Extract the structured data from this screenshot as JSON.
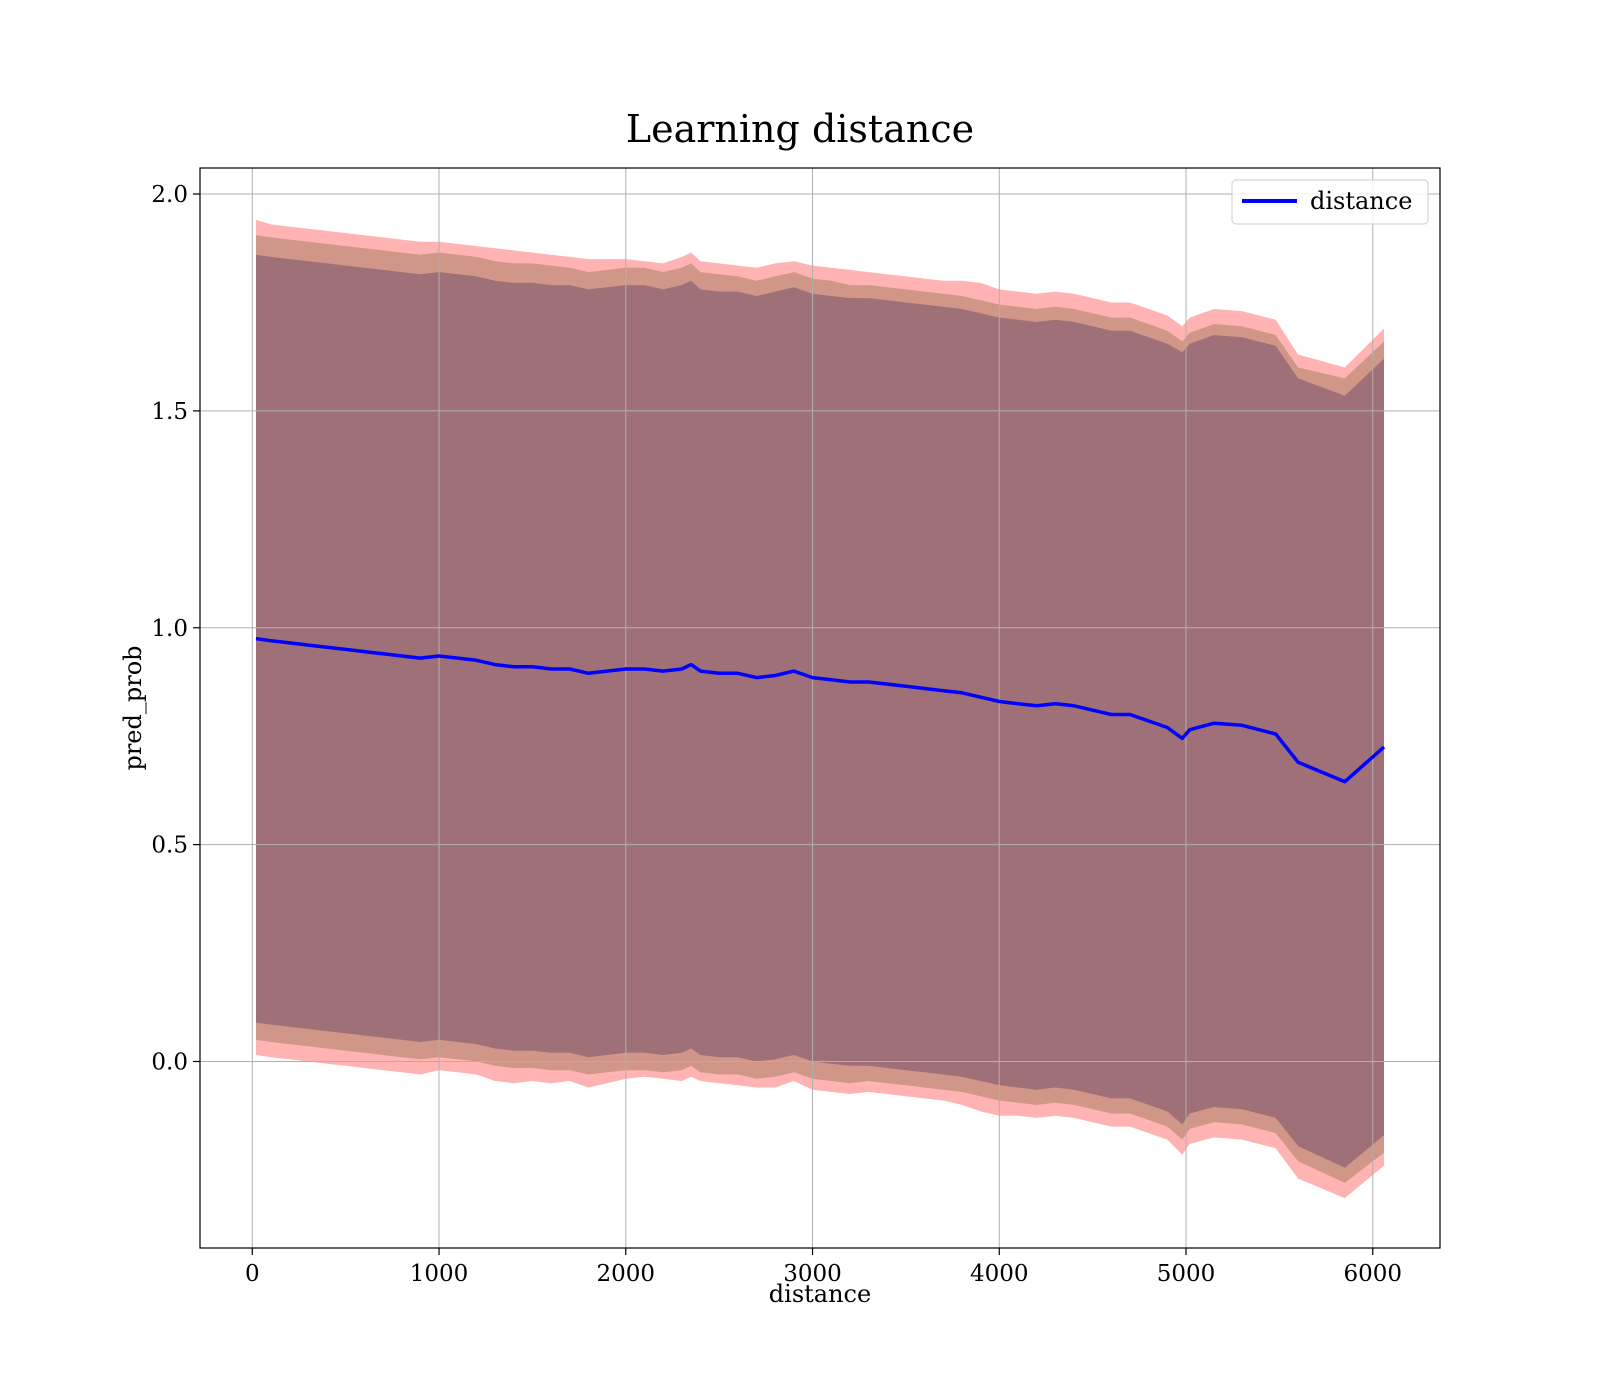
{
  "chart_data": {
    "type": "line",
    "title": "Learning distance",
    "xlabel": "distance",
    "ylabel": "pred_prob",
    "xlim": [
      -280,
      6360
    ],
    "ylim": [
      -0.43,
      2.06
    ],
    "xticks": [
      0,
      1000,
      2000,
      3000,
      4000,
      5000,
      6000
    ],
    "yticks": [
      0.0,
      0.5,
      1.0,
      1.5,
      2.0
    ],
    "xtick_labels": [
      "0",
      "1000",
      "2000",
      "3000",
      "4000",
      "5000",
      "6000"
    ],
    "ytick_labels": [
      "0.0",
      "0.5",
      "1.0",
      "1.5",
      "2.0"
    ],
    "grid": true,
    "legend": {
      "position": "upper-right",
      "entries": [
        "distance"
      ]
    },
    "colors": {
      "line": "#0000ff",
      "band_outer": "#ff9999",
      "band_mid": "#c8917f",
      "band_inner": "#a07078"
    },
    "series": [
      {
        "name": "distance",
        "x": [
          20,
          100,
          200,
          300,
          400,
          500,
          600,
          700,
          800,
          900,
          1000,
          1100,
          1200,
          1300,
          1400,
          1500,
          1600,
          1700,
          1800,
          1900,
          2000,
          2100,
          2200,
          2300,
          2350,
          2400,
          2500,
          2600,
          2700,
          2800,
          2900,
          3000,
          3100,
          3200,
          3300,
          3400,
          3500,
          3600,
          3700,
          3800,
          3900,
          4000,
          4100,
          4200,
          4300,
          4400,
          4500,
          4600,
          4700,
          4800,
          4900,
          4980,
          5020,
          5150,
          5300,
          5480,
          5600,
          5850,
          6060
        ],
        "y": [
          0.975,
          0.97,
          0.965,
          0.96,
          0.955,
          0.95,
          0.945,
          0.94,
          0.935,
          0.93,
          0.935,
          0.93,
          0.925,
          0.915,
          0.91,
          0.91,
          0.905,
          0.905,
          0.895,
          0.9,
          0.905,
          0.905,
          0.9,
          0.905,
          0.915,
          0.9,
          0.895,
          0.895,
          0.885,
          0.89,
          0.9,
          0.885,
          0.88,
          0.875,
          0.875,
          0.87,
          0.865,
          0.86,
          0.855,
          0.85,
          0.84,
          0.83,
          0.825,
          0.82,
          0.825,
          0.82,
          0.81,
          0.8,
          0.8,
          0.785,
          0.77,
          0.745,
          0.765,
          0.78,
          0.775,
          0.755,
          0.69,
          0.645,
          0.725
        ]
      }
    ],
    "bands": [
      {
        "role": "outer",
        "upper": [
          1.94,
          1.93,
          1.925,
          1.92,
          1.915,
          1.91,
          1.905,
          1.9,
          1.895,
          1.89,
          1.89,
          1.885,
          1.88,
          1.875,
          1.87,
          1.865,
          1.86,
          1.855,
          1.85,
          1.85,
          1.85,
          1.845,
          1.84,
          1.855,
          1.865,
          1.845,
          1.84,
          1.835,
          1.83,
          1.84,
          1.845,
          1.835,
          1.83,
          1.825,
          1.82,
          1.815,
          1.81,
          1.805,
          1.8,
          1.8,
          1.795,
          1.78,
          1.775,
          1.77,
          1.775,
          1.77,
          1.76,
          1.75,
          1.75,
          1.735,
          1.72,
          1.695,
          1.715,
          1.735,
          1.73,
          1.71,
          1.63,
          1.6,
          1.69
        ],
        "lower": [
          0.015,
          0.01,
          0.005,
          0.0,
          -0.005,
          -0.01,
          -0.015,
          -0.02,
          -0.025,
          -0.03,
          -0.02,
          -0.025,
          -0.03,
          -0.045,
          -0.05,
          -0.045,
          -0.05,
          -0.045,
          -0.06,
          -0.05,
          -0.04,
          -0.035,
          -0.04,
          -0.045,
          -0.035,
          -0.045,
          -0.05,
          -0.055,
          -0.06,
          -0.06,
          -0.045,
          -0.065,
          -0.07,
          -0.075,
          -0.07,
          -0.075,
          -0.08,
          -0.085,
          -0.09,
          -0.1,
          -0.115,
          -0.125,
          -0.125,
          -0.13,
          -0.125,
          -0.13,
          -0.14,
          -0.15,
          -0.15,
          -0.165,
          -0.18,
          -0.215,
          -0.19,
          -0.175,
          -0.18,
          -0.2,
          -0.27,
          -0.315,
          -0.24
        ]
      },
      {
        "role": "mid",
        "upper": [
          1.905,
          1.9,
          1.895,
          1.89,
          1.885,
          1.88,
          1.875,
          1.87,
          1.865,
          1.86,
          1.865,
          1.86,
          1.855,
          1.845,
          1.84,
          1.84,
          1.835,
          1.83,
          1.82,
          1.825,
          1.83,
          1.83,
          1.82,
          1.83,
          1.84,
          1.82,
          1.815,
          1.81,
          1.8,
          1.81,
          1.82,
          1.805,
          1.8,
          1.79,
          1.79,
          1.785,
          1.78,
          1.775,
          1.77,
          1.765,
          1.755,
          1.745,
          1.74,
          1.735,
          1.74,
          1.735,
          1.725,
          1.715,
          1.715,
          1.7,
          1.685,
          1.66,
          1.68,
          1.7,
          1.695,
          1.675,
          1.6,
          1.575,
          1.66
        ],
        "lower": [
          0.05,
          0.045,
          0.04,
          0.035,
          0.03,
          0.025,
          0.02,
          0.015,
          0.01,
          0.005,
          0.01,
          0.005,
          0.0,
          -0.01,
          -0.015,
          -0.015,
          -0.02,
          -0.02,
          -0.03,
          -0.025,
          -0.02,
          -0.02,
          -0.025,
          -0.02,
          -0.01,
          -0.025,
          -0.03,
          -0.03,
          -0.04,
          -0.035,
          -0.025,
          -0.04,
          -0.045,
          -0.05,
          -0.045,
          -0.05,
          -0.055,
          -0.06,
          -0.065,
          -0.07,
          -0.08,
          -0.09,
          -0.095,
          -0.1,
          -0.095,
          -0.1,
          -0.11,
          -0.12,
          -0.12,
          -0.135,
          -0.15,
          -0.18,
          -0.155,
          -0.14,
          -0.145,
          -0.165,
          -0.23,
          -0.28,
          -0.21
        ]
      },
      {
        "role": "inner",
        "upper": [
          1.86,
          1.855,
          1.85,
          1.845,
          1.84,
          1.835,
          1.83,
          1.825,
          1.82,
          1.815,
          1.82,
          1.815,
          1.81,
          1.8,
          1.795,
          1.795,
          1.79,
          1.79,
          1.78,
          1.785,
          1.79,
          1.79,
          1.78,
          1.79,
          1.8,
          1.78,
          1.775,
          1.775,
          1.765,
          1.775,
          1.785,
          1.77,
          1.765,
          1.76,
          1.76,
          1.755,
          1.75,
          1.745,
          1.74,
          1.735,
          1.725,
          1.715,
          1.71,
          1.705,
          1.71,
          1.705,
          1.695,
          1.685,
          1.685,
          1.67,
          1.655,
          1.635,
          1.655,
          1.675,
          1.67,
          1.65,
          1.575,
          1.535,
          1.62
        ],
        "lower": [
          0.09,
          0.085,
          0.08,
          0.075,
          0.07,
          0.065,
          0.06,
          0.055,
          0.05,
          0.045,
          0.05,
          0.045,
          0.04,
          0.03,
          0.025,
          0.025,
          0.02,
          0.02,
          0.01,
          0.015,
          0.02,
          0.02,
          0.015,
          0.02,
          0.03,
          0.015,
          0.01,
          0.01,
          0.0,
          0.005,
          0.015,
          0.0,
          -0.005,
          -0.01,
          -0.01,
          -0.015,
          -0.02,
          -0.025,
          -0.03,
          -0.035,
          -0.045,
          -0.055,
          -0.06,
          -0.065,
          -0.06,
          -0.065,
          -0.075,
          -0.085,
          -0.085,
          -0.1,
          -0.115,
          -0.145,
          -0.12,
          -0.105,
          -0.11,
          -0.13,
          -0.195,
          -0.245,
          -0.17
        ]
      }
    ]
  }
}
